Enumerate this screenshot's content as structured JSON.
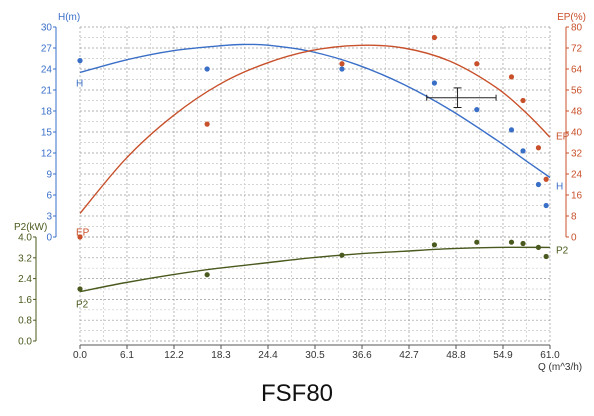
{
  "caption": "FSF80",
  "chart_data": {
    "type": "line",
    "x_label": "Q (m^3/h)",
    "x_ticks": [
      "0.0",
      "6.1",
      "12.2",
      "18.3",
      "24.4",
      "30.5",
      "36.6",
      "42.7",
      "48.8",
      "54.9",
      "61.0"
    ],
    "xlim": [
      0,
      61
    ],
    "grid": true,
    "axes": {
      "H": {
        "label": "H(m)",
        "color": "#3a6fc8",
        "ylim": [
          0,
          30
        ],
        "ticks": [
          "0",
          "3",
          "6",
          "9",
          "12",
          "15",
          "18",
          "21",
          "24",
          "27",
          "30"
        ]
      },
      "EP": {
        "label": "EP(%)",
        "color": "#c8502a",
        "ylim": [
          0,
          80
        ],
        "ticks": [
          "0",
          "8",
          "16",
          "24",
          "32",
          "40",
          "48",
          "56",
          "64",
          "72",
          "80"
        ]
      },
      "P2": {
        "label": "P2(kW)",
        "color": "#4a5a1e",
        "ylim": [
          0,
          4.0
        ],
        "ticks": [
          "0.0",
          "0.8",
          "1.6",
          "2.4",
          "3.2",
          "4.0"
        ]
      }
    },
    "series": [
      {
        "name": "H",
        "axis": "H",
        "color": "#3a6fc8",
        "curve": [
          [
            0,
            23.5
          ],
          [
            6,
            25.3
          ],
          [
            12,
            26.6
          ],
          [
            18,
            27.3
          ],
          [
            21,
            27.5
          ],
          [
            24.4,
            27.4
          ],
          [
            30,
            26.5
          ],
          [
            36,
            24.6
          ],
          [
            42,
            21.8
          ],
          [
            48,
            18.2
          ],
          [
            54,
            13.9
          ],
          [
            58,
            10.8
          ],
          [
            61,
            8.5
          ]
        ],
        "points": [
          [
            0,
            25.2
          ],
          [
            16.5,
            24.0
          ],
          [
            34,
            24.0
          ],
          [
            46,
            22.0
          ],
          [
            51.5,
            18.2
          ],
          [
            56,
            15.3
          ],
          [
            57.5,
            12.3
          ],
          [
            59.5,
            7.5
          ],
          [
            60.5,
            4.5
          ]
        ],
        "start_label": "H",
        "end_label": "H"
      },
      {
        "name": "EP",
        "axis": "EP",
        "color": "#c8502a",
        "curve": [
          [
            0,
            9
          ],
          [
            6,
            30
          ],
          [
            12,
            46
          ],
          [
            18,
            58
          ],
          [
            24,
            66
          ],
          [
            30,
            71
          ],
          [
            36,
            73
          ],
          [
            42,
            72
          ],
          [
            48,
            67
          ],
          [
            54,
            57
          ],
          [
            58,
            47
          ],
          [
            61,
            38
          ]
        ],
        "points": [
          [
            0,
            0
          ],
          [
            16.5,
            43
          ],
          [
            34,
            66
          ],
          [
            46,
            76
          ],
          [
            51.5,
            66
          ],
          [
            56,
            61
          ],
          [
            57.5,
            52
          ],
          [
            59.5,
            34
          ],
          [
            60.5,
            22
          ]
        ],
        "start_label": "EP",
        "end_label": "EP"
      },
      {
        "name": "P2",
        "axis": "P2",
        "color": "#4a5a1e",
        "curve": [
          [
            0,
            1.9
          ],
          [
            6,
            2.25
          ],
          [
            12,
            2.55
          ],
          [
            18,
            2.8
          ],
          [
            24,
            3.0
          ],
          [
            30,
            3.2
          ],
          [
            36,
            3.35
          ],
          [
            42,
            3.45
          ],
          [
            48,
            3.55
          ],
          [
            54,
            3.6
          ],
          [
            61,
            3.6
          ]
        ],
        "points": [
          [
            0,
            2.0
          ],
          [
            16.5,
            2.55
          ],
          [
            34,
            3.3
          ],
          [
            46,
            3.7
          ],
          [
            51.5,
            3.8
          ],
          [
            56,
            3.8
          ],
          [
            57.5,
            3.75
          ],
          [
            59.5,
            3.6
          ],
          [
            60.5,
            3.25
          ]
        ],
        "start_label": "P2",
        "end_label": "P2"
      }
    ],
    "operating_point": {
      "x": 49.0,
      "h": 19.9,
      "x_min": 45.0,
      "x_max": 54.0,
      "h_min": 18.5,
      "h_max": 21.3
    }
  }
}
